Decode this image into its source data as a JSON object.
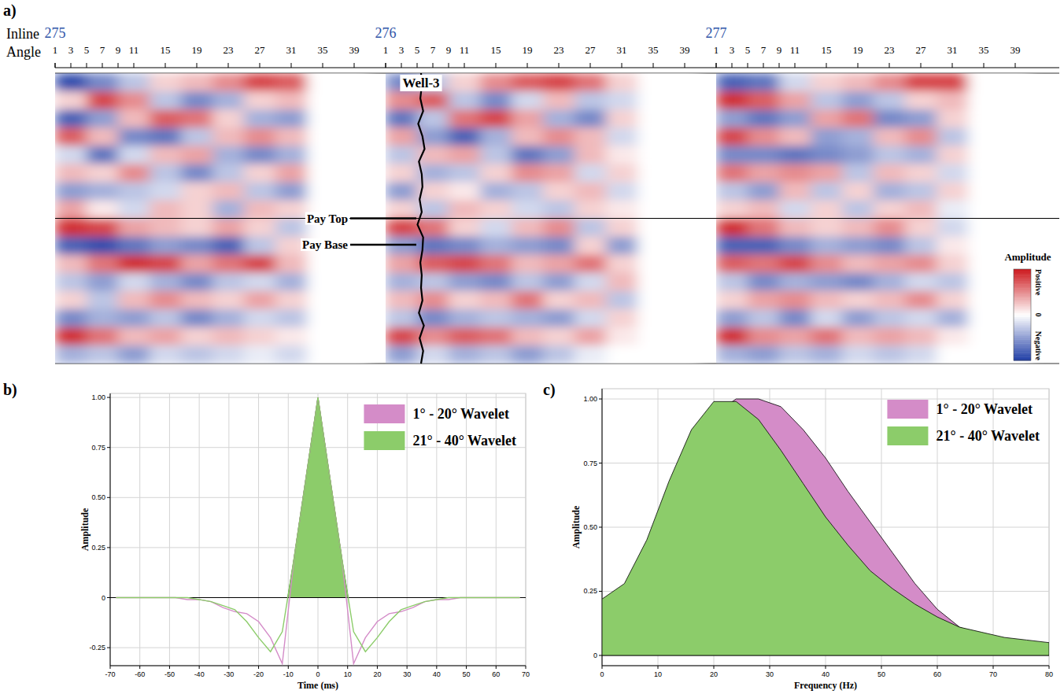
{
  "chart_data": [
    {
      "type": "heatmap",
      "panel_label": "a)",
      "inline_label": "Inline",
      "x_label": "Angle",
      "xlim": [
        1,
        43
      ],
      "ylim": [
        0,
        16
      ],
      "xticks": [
        1,
        3,
        5,
        7,
        9,
        11,
        15,
        19,
        23,
        27,
        31,
        35,
        39
      ],
      "x_bins": [
        1,
        5,
        9,
        13,
        17,
        21,
        25,
        29,
        33,
        37,
        41
      ],
      "inlines": [
        {
          "label": "275",
          "cells": [
            [
              -0.9,
              -0.6,
              -0.3,
              0.2,
              0.3,
              0.5,
              0.8,
              0.7,
              0,
              0
            ],
            [
              0.2,
              0.8,
              0.5,
              -0.3,
              -0.6,
              -0.4,
              0.2,
              0.3,
              0,
              0
            ],
            [
              -0.8,
              -0.5,
              0.3,
              0.7,
              0.6,
              0.2,
              -0.4,
              -0.5,
              0,
              0
            ],
            [
              0.7,
              0.3,
              -0.6,
              -0.7,
              -0.3,
              0.3,
              0.5,
              0.3,
              0,
              0
            ],
            [
              -0.2,
              -0.7,
              -0.2,
              0.3,
              0.4,
              -0.4,
              -0.6,
              -0.4,
              0,
              0
            ],
            [
              0.3,
              0.2,
              0.5,
              -0.3,
              -0.6,
              -0.3,
              0.2,
              0.4,
              0,
              0
            ],
            [
              -0.5,
              -0.4,
              -0.3,
              -0.2,
              0.2,
              0.3,
              -0.3,
              -0.5,
              0,
              0
            ],
            [
              0.4,
              0.1,
              -0.2,
              0.3,
              0.2,
              -0.4,
              0.3,
              0.2,
              0,
              0
            ],
            [
              0.9,
              0.8,
              0.4,
              0.3,
              0.2,
              0.4,
              0.2,
              -0.3,
              0,
              0
            ],
            [
              -0.8,
              -0.9,
              -0.7,
              -0.5,
              -0.6,
              -0.8,
              -0.3,
              0.2,
              0,
              0
            ],
            [
              0.3,
              0.6,
              0.9,
              0.8,
              0.4,
              0.6,
              0.8,
              0.3,
              0,
              0
            ],
            [
              -0.3,
              -0.5,
              -0.2,
              -0.4,
              -0.6,
              -0.3,
              -0.2,
              -0.4,
              0,
              0
            ],
            [
              0.2,
              -0.3,
              0.3,
              0.5,
              0.3,
              0.2,
              0.4,
              0.2,
              0,
              0
            ],
            [
              -0.6,
              -0.4,
              -0.5,
              -0.3,
              -0.6,
              -0.4,
              -0.2,
              -0.3,
              0,
              0
            ],
            [
              0.9,
              0.6,
              0.3,
              0.4,
              0.2,
              0.3,
              0.2,
              0.1,
              0,
              0
            ],
            [
              -0.4,
              -0.3,
              -0.5,
              -0.2,
              -0.3,
              -0.2,
              -0.1,
              -0.2,
              0,
              0
            ]
          ]
        },
        {
          "label": "276",
          "cells": [
            [
              -0.6,
              -0.3,
              0.2,
              0.5,
              0.7,
              0.8,
              0.6,
              0.2,
              0,
              0
            ],
            [
              0.5,
              0.7,
              -0.3,
              -0.6,
              -0.2,
              0.3,
              -0.3,
              -0.2,
              0,
              0
            ],
            [
              -0.7,
              -0.3,
              0.6,
              0.8,
              0.4,
              -0.4,
              -0.6,
              0.2,
              0,
              0
            ],
            [
              0.4,
              -0.5,
              -0.8,
              -0.4,
              0.3,
              0.5,
              0.3,
              -0.2,
              0,
              0
            ],
            [
              -0.3,
              0.3,
              0.4,
              -0.3,
              -0.7,
              -0.5,
              0.3,
              0.1,
              0,
              0
            ],
            [
              0.2,
              -0.4,
              -0.3,
              0.2,
              0.5,
              0.4,
              -0.2,
              0.2,
              0,
              0
            ],
            [
              -0.5,
              0.2,
              0.1,
              -0.4,
              -0.3,
              0.2,
              0.3,
              -0.2,
              0,
              0
            ],
            [
              0.2,
              -0.3,
              0.3,
              0.2,
              -0.2,
              -0.3,
              0.2,
              0.1,
              0,
              0
            ],
            [
              0.8,
              0.6,
              0.2,
              -0.2,
              0.3,
              0.5,
              -0.3,
              0.2,
              0,
              0
            ],
            [
              -0.5,
              -0.7,
              -0.6,
              -0.4,
              -0.5,
              -0.6,
              0.2,
              -0.5,
              0,
              0
            ],
            [
              0.4,
              0.7,
              0.8,
              0.6,
              0.3,
              0.4,
              0.6,
              0.2,
              0,
              0
            ],
            [
              -0.4,
              -0.3,
              -0.5,
              -0.6,
              -0.3,
              -0.5,
              -0.2,
              0.3,
              0,
              0
            ],
            [
              0.3,
              0.5,
              0.2,
              0.3,
              0.6,
              0.2,
              0.3,
              -0.3,
              0,
              0
            ],
            [
              -0.3,
              -0.6,
              -0.4,
              -0.3,
              -0.4,
              -0.5,
              -0.2,
              0.2,
              0,
              0
            ],
            [
              0.8,
              0.5,
              0.7,
              0.6,
              0.3,
              0.2,
              0.4,
              0.1,
              0,
              0
            ],
            [
              -0.5,
              -0.2,
              -0.4,
              -0.3,
              -0.5,
              -0.3,
              -0.1,
              0,
              0,
              0
            ]
          ],
          "well": {
            "label": "Well-3",
            "angle": 5.5,
            "log": [
              0,
              0.1,
              -0.1,
              0.3,
              -0.4,
              0.2,
              0.5,
              -0.3,
              0.1,
              0.2,
              -0.2,
              0.1,
              -0.5,
              0.3,
              0.2,
              -0.1,
              0.1,
              0,
              0.2,
              -0.3,
              0.4,
              -0.2,
              0.3,
              0
            ]
          }
        },
        {
          "label": "277",
          "cells": [
            [
              -0.8,
              -0.7,
              -0.2,
              0.2,
              0.3,
              0.5,
              0.8,
              0.8,
              0,
              0
            ],
            [
              0.9,
              0.7,
              0.4,
              -0.3,
              -0.5,
              -0.3,
              0.2,
              0.3,
              0,
              0
            ],
            [
              -0.5,
              -0.7,
              -0.5,
              0.4,
              0.6,
              -0.6,
              -0.5,
              0.2,
              0,
              0
            ],
            [
              0.8,
              0.5,
              0.3,
              -0.5,
              -0.4,
              0.3,
              0.5,
              -0.3,
              0,
              0
            ],
            [
              -0.6,
              -0.6,
              -0.7,
              -0.6,
              -0.5,
              -0.3,
              -0.4,
              0.2,
              0,
              0
            ],
            [
              0.6,
              0.4,
              0.5,
              0.4,
              -0.3,
              0.3,
              0.2,
              -0.2,
              0,
              0
            ],
            [
              -0.3,
              -0.5,
              0.3,
              -0.3,
              0.2,
              -0.4,
              -0.3,
              0.2,
              0,
              0
            ],
            [
              0.2,
              0.3,
              -0.2,
              0.2,
              -0.3,
              0.2,
              0.3,
              -0.1,
              0,
              0
            ],
            [
              0.9,
              0.6,
              0.3,
              0.2,
              0.3,
              0.5,
              0.2,
              -0.2,
              0,
              0
            ],
            [
              -0.8,
              -0.8,
              -0.6,
              -0.4,
              -0.5,
              -0.6,
              -0.3,
              0.1,
              0,
              0
            ],
            [
              0.7,
              0.6,
              0.8,
              0.5,
              0.3,
              0.4,
              0.5,
              0.2,
              0,
              0
            ],
            [
              -0.3,
              -0.6,
              -0.4,
              -0.5,
              -0.6,
              -0.4,
              -0.2,
              -0.3,
              0,
              0
            ],
            [
              0.2,
              0.4,
              0.5,
              0.3,
              0.2,
              0.3,
              0.5,
              0.2,
              0,
              0
            ],
            [
              -0.5,
              -0.3,
              -0.6,
              -0.2,
              -0.5,
              -0.3,
              -0.2,
              -0.4,
              0,
              0
            ],
            [
              0.9,
              0.5,
              0.4,
              0.6,
              0.3,
              0.4,
              0.3,
              0.1,
              0,
              0
            ],
            [
              -0.4,
              -0.5,
              -0.3,
              -0.4,
              -0.2,
              -0.3,
              -0.2,
              0,
              0,
              0
            ]
          ]
        }
      ],
      "horizons": [
        {
          "label": "Pay Top",
          "time": 8.0,
          "line_style": "full"
        },
        {
          "label": "Pay Base",
          "time": 9.45,
          "line_style": "leader"
        }
      ],
      "colorbar": {
        "title": "Amplitude",
        "range": [
          -1,
          1
        ],
        "ticks": [
          {
            "value": 1,
            "label": "Positive"
          },
          {
            "value": 0,
            "label": "0"
          },
          {
            "value": -1,
            "label": "Negative"
          }
        ]
      }
    },
    {
      "type": "wavelet",
      "panel_label": "b)",
      "x_label": "Time (ms)",
      "y_label": "Amplitude",
      "x": [
        -68,
        -64,
        -60,
        -56,
        -52,
        -48,
        -44,
        -40,
        -36,
        -32,
        -28,
        -24,
        -20,
        -16,
        -12,
        -8,
        -4,
        0,
        4,
        8,
        12,
        16,
        20,
        24,
        28,
        32,
        36,
        40,
        44,
        48,
        52,
        56,
        60,
        64,
        68
      ],
      "series": [
        {
          "name": "1° - 20° Wavelet",
          "color": "#d48cc8",
          "values": [
            0,
            0,
            0,
            0,
            0,
            0,
            -0.01,
            -0.01,
            -0.02,
            -0.05,
            -0.07,
            -0.08,
            -0.12,
            -0.2,
            -0.33,
            0.2,
            0.6,
            1,
            0.6,
            0.2,
            -0.33,
            -0.2,
            -0.12,
            -0.08,
            -0.07,
            -0.05,
            -0.02,
            -0.01,
            -0.01,
            0,
            0,
            0,
            0,
            0,
            0
          ]
        },
        {
          "name": "21° - 40° Wavelet",
          "color": "#8ccc6a",
          "values": [
            0,
            0,
            0,
            0,
            0,
            0,
            0,
            -0.01,
            -0.02,
            -0.04,
            -0.06,
            -0.12,
            -0.2,
            -0.27,
            -0.17,
            0.2,
            0.6,
            1,
            0.6,
            0.2,
            -0.17,
            -0.27,
            -0.2,
            -0.12,
            -0.06,
            -0.04,
            -0.02,
            -0.01,
            0,
            0,
            0,
            0,
            0,
            0,
            0
          ]
        }
      ],
      "xlim": [
        -70,
        70
      ],
      "ylim": [
        -0.34,
        1.02
      ],
      "xticks": [
        -70,
        -60,
        -50,
        -40,
        -30,
        -20,
        -10,
        0,
        10,
        20,
        30,
        40,
        50,
        60,
        70
      ],
      "yticks": [
        -0.25,
        0,
        0.25,
        {
          "value": 0.5,
          "label": "0.50"
        },
        0.75,
        {
          "value": 1,
          "label": "1.00"
        }
      ],
      "grid": true,
      "legend": "upper right"
    },
    {
      "type": "area",
      "panel_label": "c)",
      "x_label": "Frequency (Hz)",
      "y_label": "Amplitude",
      "x": [
        0,
        4,
        8,
        12,
        16,
        20,
        24,
        28,
        32,
        36,
        40,
        44,
        48,
        52,
        56,
        60,
        64,
        68,
        72,
        76,
        80
      ],
      "series": [
        {
          "name": "1° - 20° Wavelet",
          "color": "#d48cc8",
          "values": [
            0.12,
            0.2,
            0.38,
            0.6,
            0.8,
            0.94,
            1.0,
            1.0,
            0.97,
            0.88,
            0.77,
            0.64,
            0.52,
            0.4,
            0.28,
            0.18,
            0.11,
            0.08,
            0.05,
            0.03,
            0.01
          ]
        },
        {
          "name": "21° - 40° Wavelet",
          "color": "#8ccc6a",
          "values": [
            0.22,
            0.28,
            0.45,
            0.68,
            0.88,
            0.99,
            0.99,
            0.92,
            0.8,
            0.67,
            0.54,
            0.43,
            0.33,
            0.26,
            0.2,
            0.15,
            0.11,
            0.09,
            0.07,
            0.06,
            0.05
          ]
        }
      ],
      "xlim": [
        0,
        80
      ],
      "ylim": [
        -0.04,
        1.04
      ],
      "xticks": [
        0,
        10,
        20,
        30,
        40,
        50,
        60,
        70,
        80
      ],
      "yticks": [
        0,
        0.25,
        {
          "value": 0.5,
          "label": "0.50"
        },
        0.75,
        {
          "value": 1,
          "label": "1.00"
        }
      ],
      "grid": true,
      "legend": "upper right"
    }
  ]
}
